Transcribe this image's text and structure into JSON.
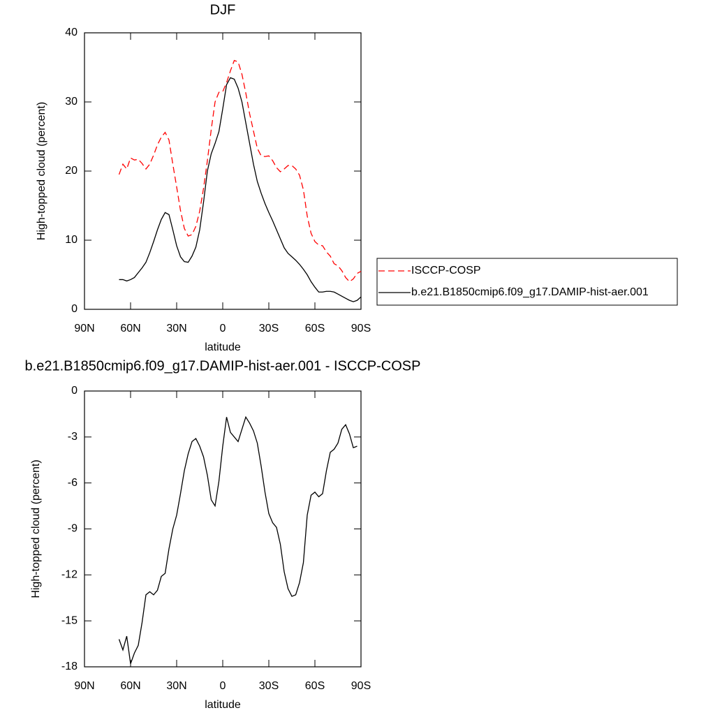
{
  "chart_data": [
    {
      "type": "line",
      "title": "DJF",
      "xlabel": "latitude",
      "ylabel": "High-topped cloud (percent)",
      "x": [
        67.5,
        65,
        62.5,
        60,
        57.5,
        55,
        52.5,
        50,
        47.5,
        45,
        42.5,
        40,
        37.5,
        35,
        32.5,
        30,
        27.5,
        25,
        22.5,
        20,
        17.5,
        15,
        12.5,
        10,
        7.5,
        5,
        2.5,
        0,
        -2.5,
        -5,
        -7.5,
        -10,
        -12.5,
        -15,
        -17.5,
        -20,
        -22.5,
        -25,
        -27.5,
        -30,
        -32.5,
        -35,
        -37.5,
        -40,
        -42.5,
        -45,
        -47.5,
        -50,
        -52.5,
        -55,
        -57.5,
        -60,
        -62.5,
        -65,
        -67.5,
        -70,
        -72.5,
        -75,
        -77.5,
        -80,
        -82.5,
        -85,
        -87.5,
        -90
      ],
      "series": [
        {
          "name": "ISCCP-COSP",
          "color": "#ff0000",
          "dash": true,
          "values": [
            19.5,
            21,
            20.3,
            21.9,
            21.6,
            21.7,
            21.1,
            20.3,
            21,
            22.3,
            23.8,
            24.9,
            25.6,
            24.5,
            21,
            17.7,
            14.3,
            11.7,
            10.6,
            10.8,
            12,
            14.2,
            17.5,
            21.5,
            26,
            30,
            31.4,
            31.5,
            32.8,
            34.5,
            36,
            35.8,
            34,
            31.3,
            28.3,
            25.8,
            23.3,
            22.2,
            22.1,
            22.2,
            21.5,
            20.5,
            19.9,
            20.3,
            20.8,
            20.8,
            20.3,
            19.4,
            17.3,
            13.5,
            11,
            9.8,
            9.3,
            9.2,
            8.3,
            7.7,
            6.6,
            6.3,
            5.6,
            4.6,
            4.0,
            4.4,
            5.2,
            5.5
          ]
        },
        {
          "name": "b.e21.B1850cmip6.f09_g17.DAMIP-hist-aer.001",
          "color": "#000000",
          "dash": false,
          "values": [
            4.3,
            4.3,
            4.1,
            4.3,
            4.6,
            5.3,
            6.0,
            6.8,
            8.2,
            9.8,
            11.5,
            13.0,
            14.0,
            13.7,
            11.5,
            9.2,
            7.6,
            6.9,
            6.8,
            7.7,
            9.0,
            11.5,
            15.5,
            20,
            22.5,
            24,
            25.7,
            29,
            32.5,
            33.5,
            33.3,
            32,
            30,
            27,
            24,
            21,
            18.5,
            16.8,
            15.3,
            14,
            12.8,
            11.5,
            10.2,
            8.9,
            8.1,
            7.6,
            7.1,
            6.5,
            5.8,
            5.0,
            4.0,
            3.2,
            2.5,
            2.5,
            2.6,
            2.6,
            2.5,
            2.2,
            1.9,
            1.6,
            1.3,
            1.1,
            1.3,
            1.8
          ]
        }
      ],
      "xlim": [
        90,
        -90
      ],
      "xticks": [
        {
          "value": 90,
          "label": "90N"
        },
        {
          "value": 60,
          "label": "60N"
        },
        {
          "value": 30,
          "label": "30N"
        },
        0,
        {
          "value": -30,
          "label": "30S"
        },
        {
          "value": -60,
          "label": "60S"
        },
        {
          "value": -90,
          "label": "90S"
        }
      ],
      "ylim": [
        0,
        40
      ],
      "yticks": [
        0,
        10,
        20,
        30,
        40
      ],
      "legend": "right"
    },
    {
      "type": "line",
      "title": "b.e21.B1850cmip6.f09_g17.DAMIP-hist-aer.001 - ISCCP-COSP",
      "xlabel": "latitude",
      "ylabel": "High-topped cloud (percent)",
      "x": [
        67.5,
        65,
        62.5,
        60,
        57.5,
        55,
        52.5,
        50,
        47.5,
        45,
        42.5,
        40,
        37.5,
        35,
        32.5,
        30,
        27.5,
        25,
        22.5,
        20,
        17.5,
        15,
        12.5,
        10,
        7.5,
        5,
        2.5,
        0,
        -2.5,
        -5,
        -7.5,
        -10,
        -12.5,
        -15,
        -17.5,
        -20,
        -22.5,
        -25,
        -27.5,
        -30,
        -32.5,
        -35,
        -37.5,
        -40,
        -42.5,
        -45,
        -47.5,
        -50,
        -52.5,
        -55,
        -57.5,
        -60,
        -62.5,
        -65,
        -67.5,
        -70,
        -72.5,
        -75,
        -77.5,
        -80,
        -82.5,
        -85,
        -87.5,
        -90
      ],
      "series": [
        {
          "color": "#000000",
          "dash": false,
          "values": [
            -16.2,
            -16.9,
            -16.0,
            -17.8,
            -17.1,
            -16.6,
            -15.1,
            -13.3,
            -13.1,
            -13.3,
            -13.0,
            -12.1,
            -11.9,
            -10.3,
            -9.0,
            -8.1,
            -6.7,
            -5.2,
            -4.1,
            -3.3,
            -3.1,
            -3.6,
            -4.3,
            -5.5,
            -7.1,
            -7.5,
            -5.9,
            -3.6,
            -1.7,
            -2.7,
            -3.0,
            -3.3,
            -2.5,
            -1.7,
            -2.1,
            -2.6,
            -3.4,
            -4.9,
            -6.6,
            -8.0,
            -8.6,
            -8.9,
            -10.0,
            -11.8,
            -12.9,
            -13.4,
            -13.3,
            -12.5,
            -11.2,
            -8.1,
            -6.8,
            -6.6,
            -6.9,
            -6.7,
            -5.2,
            -4.0,
            -3.8,
            -3.4,
            -2.5,
            -2.2,
            -2.8,
            -3.7,
            -3.6,
            null
          ]
        }
      ],
      "xlim": [
        90,
        -90
      ],
      "xticks": [
        {
          "value": 90,
          "label": "90N"
        },
        {
          "value": 60,
          "label": "60N"
        },
        {
          "value": 30,
          "label": "30N"
        },
        0,
        {
          "value": -30,
          "label": "30S"
        },
        {
          "value": -60,
          "label": "60S"
        },
        {
          "value": -90,
          "label": "90S"
        }
      ],
      "ylim": [
        -18,
        0
      ],
      "yticks": [
        -18,
        -15,
        -12,
        -9,
        -6,
        -3,
        0
      ]
    }
  ]
}
